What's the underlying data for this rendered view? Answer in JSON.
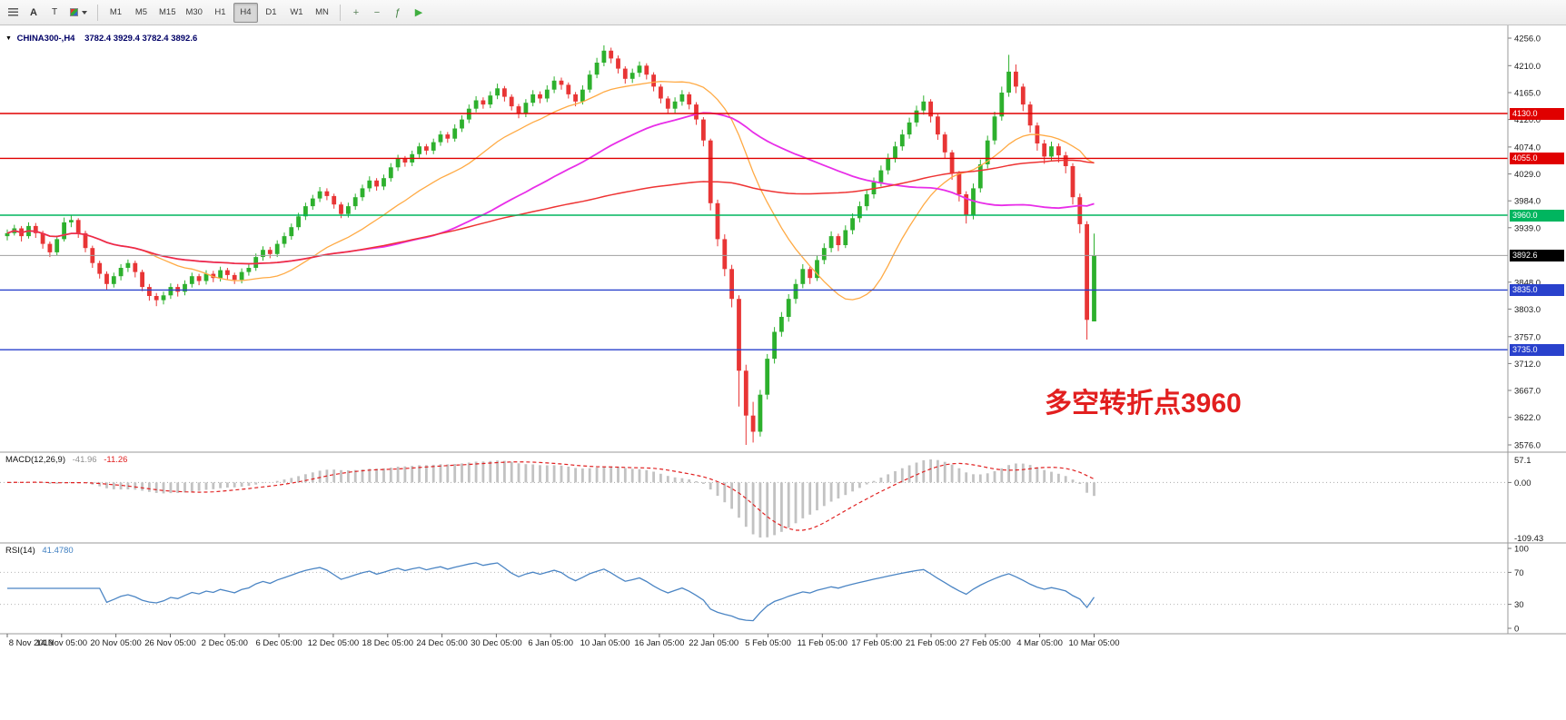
{
  "toolbar": {
    "text_tool_label": "A",
    "shapes_tool_label": "T",
    "timeframes": [
      "M1",
      "M5",
      "M15",
      "M30",
      "H1",
      "H4",
      "D1",
      "W1",
      "MN"
    ],
    "active_timeframe": "H4",
    "right_icons": [
      {
        "name": "zoom-in",
        "icon": "zoom-in-icon",
        "glyph": "+",
        "color": "#567f56"
      },
      {
        "name": "zoom-out",
        "icon": "zoom-out-icon",
        "glyph": "−",
        "color": "#567f56"
      },
      {
        "name": "indicators",
        "icon": "indicators-icon",
        "glyph": "ƒ",
        "color": "#3f7f3f"
      },
      {
        "name": "auto-trading",
        "icon": "autotrading-icon",
        "glyph": "▶",
        "color": "#3fae3f"
      }
    ]
  },
  "main_chart": {
    "title": "CHINA300-,H4",
    "ohlc_text": "3782.4 3929.4 3782.4 3892.6",
    "y_range": [
      3576.0,
      4256.0
    ],
    "y_ticks": [
      4256.0,
      4210.0,
      4165.0,
      4120.0,
      4074.0,
      4029.0,
      3984.0,
      3939.0,
      3848.0,
      3803.0,
      3757.0,
      3712.0,
      3667.0,
      3622.0,
      3576.0
    ],
    "hlines": [
      {
        "price": 4130.0,
        "label": "4130.0",
        "color": "#e00000"
      },
      {
        "price": 4055.0,
        "label": "4055.0",
        "color": "#e00000"
      },
      {
        "price": 3960.0,
        "label": "3960.0",
        "color": "#00b55f"
      },
      {
        "price": 3835.0,
        "label": "3835.0",
        "color": "#2941cc"
      },
      {
        "price": 3735.0,
        "label": "3735.0",
        "color": "#2941cc"
      }
    ],
    "current_price": {
      "value": 3892.6,
      "label": "3892.6",
      "line_color": "#a0a0a0",
      "label_bg": "#000000"
    },
    "annotation": {
      "text": "多空转折点3960",
      "color": "#e21f1f"
    }
  },
  "macd_panel": {
    "label": "MACD(12,26,9)",
    "value_main": "-41.96",
    "value_signal": "-11.26",
    "y_tick_labels": [
      "57.1",
      "0.00",
      "-109.43"
    ],
    "histogram_color": "#c2c2c2",
    "signal_color": "#e02020"
  },
  "rsi_panel": {
    "label": "RSI(14)",
    "value": "41.4780",
    "y_tick_labels": [
      "100",
      "70",
      "30",
      "0"
    ],
    "y_tick_values": [
      100,
      70,
      30,
      0
    ],
    "levels": [
      70,
      30
    ],
    "line_color": "#4b85c4"
  },
  "time_axis": {
    "labels": [
      "8 Nov 2019",
      "14 Nov 05:00",
      "20 Nov 05:00",
      "26 Nov 05:00",
      "2 Dec 05:00",
      "6 Dec 05:00",
      "12 Dec 05:00",
      "18 Dec 05:00",
      "24 Dec 05:00",
      "30 Dec 05:00",
      "6 Jan 05:00",
      "10 Jan 05:00",
      "16 Jan 05:00",
      "22 Jan 05:00",
      "5 Feb 05:00",
      "11 Feb 05:00",
      "17 Feb 05:00",
      "21 Feb 05:00",
      "27 Feb 05:00",
      "4 Mar 05:00",
      "10 Mar 05:00"
    ]
  },
  "chart_data": {
    "type": "candlestick",
    "symbol": "CHINA300-",
    "timeframe": "H4",
    "title": "CHINA300-,H4 with MACD(12,26,9) and RSI(14)",
    "ylim": [
      3576.0,
      4256.0
    ],
    "up_color": "#2db02d",
    "down_color": "#e83535",
    "moving_averages": [
      {
        "period": 20,
        "color": "#ffaa44",
        "width": 1.3
      },
      {
        "period": 50,
        "color": "#e82ee8",
        "width": 1.8
      },
      {
        "period": 100,
        "color": "#ee3333",
        "width": 1.5
      }
    ],
    "macd": {
      "fast": 12,
      "slow": 26,
      "signal": 9
    },
    "rsi": {
      "period": 14
    },
    "candles": [
      [
        3925,
        3936,
        3918,
        3930
      ],
      [
        3930,
        3944,
        3926,
        3938
      ],
      [
        3938,
        3942,
        3916,
        3925
      ],
      [
        3925,
        3948,
        3921,
        3942
      ],
      [
        3942,
        3947,
        3922,
        3930
      ],
      [
        3930,
        3934,
        3904,
        3912
      ],
      [
        3912,
        3916,
        3890,
        3898
      ],
      [
        3898,
        3926,
        3893,
        3920
      ],
      [
        3920,
        3956,
        3916,
        3948
      ],
      [
        3948,
        3960,
        3940,
        3952
      ],
      [
        3952,
        3955,
        3922,
        3930
      ],
      [
        3930,
        3934,
        3898,
        3905
      ],
      [
        3905,
        3909,
        3872,
        3880
      ],
      [
        3880,
        3884,
        3854,
        3862
      ],
      [
        3862,
        3866,
        3836,
        3845
      ],
      [
        3845,
        3864,
        3839,
        3858
      ],
      [
        3858,
        3878,
        3851,
        3872
      ],
      [
        3872,
        3886,
        3865,
        3880
      ],
      [
        3880,
        3884,
        3856,
        3865
      ],
      [
        3865,
        3869,
        3833,
        3840
      ],
      [
        3840,
        3845,
        3817,
        3825
      ],
      [
        3825,
        3830,
        3808,
        3818
      ],
      [
        3818,
        3832,
        3811,
        3826
      ],
      [
        3826,
        3846,
        3820,
        3840
      ],
      [
        3840,
        3845,
        3824,
        3832
      ],
      [
        3832,
        3851,
        3826,
        3845
      ],
      [
        3845,
        3864,
        3839,
        3858
      ],
      [
        3858,
        3862,
        3843,
        3850
      ],
      [
        3850,
        3868,
        3844,
        3862
      ],
      [
        3862,
        3867,
        3848,
        3855
      ],
      [
        3855,
        3874,
        3849,
        3868
      ],
      [
        3868,
        3872,
        3853,
        3860
      ],
      [
        3860,
        3864,
        3845,
        3852
      ],
      [
        3852,
        3871,
        3846,
        3865
      ],
      [
        3865,
        3878,
        3859,
        3872
      ],
      [
        3872,
        3896,
        3867,
        3890
      ],
      [
        3890,
        3908,
        3884,
        3902
      ],
      [
        3902,
        3907,
        3888,
        3895
      ],
      [
        3895,
        3918,
        3890,
        3912
      ],
      [
        3912,
        3931,
        3906,
        3925
      ],
      [
        3925,
        3946,
        3919,
        3940
      ],
      [
        3940,
        3964,
        3935,
        3958
      ],
      [
        3958,
        3981,
        3952,
        3975
      ],
      [
        3975,
        3994,
        3969,
        3988
      ],
      [
        3988,
        4007,
        3982,
        4000
      ],
      [
        4000,
        4005,
        3985,
        3992
      ],
      [
        3992,
        3996,
        3971,
        3978
      ],
      [
        3978,
        3982,
        3955,
        3962
      ],
      [
        3962,
        3981,
        3956,
        3975
      ],
      [
        3975,
        3996,
        3969,
        3990
      ],
      [
        3990,
        4011,
        3984,
        4005
      ],
      [
        4005,
        4025,
        3999,
        4018
      ],
      [
        4018,
        4022,
        4001,
        4008
      ],
      [
        4008,
        4028,
        4002,
        4022
      ],
      [
        4022,
        4047,
        4016,
        4040
      ],
      [
        4040,
        4061,
        4034,
        4055
      ],
      [
        4055,
        4059,
        4041,
        4048
      ],
      [
        4048,
        4068,
        4042,
        4062
      ],
      [
        4062,
        4081,
        4056,
        4075
      ],
      [
        4075,
        4079,
        4061,
        4068
      ],
      [
        4068,
        4088,
        4062,
        4082
      ],
      [
        4082,
        4101,
        4076,
        4095
      ],
      [
        4095,
        4099,
        4081,
        4088
      ],
      [
        4088,
        4112,
        4083,
        4105
      ],
      [
        4105,
        4127,
        4099,
        4120
      ],
      [
        4120,
        4145,
        4114,
        4138
      ],
      [
        4138,
        4159,
        4132,
        4152
      ],
      [
        4152,
        4157,
        4138,
        4145
      ],
      [
        4145,
        4167,
        4139,
        4160
      ],
      [
        4160,
        4180,
        4154,
        4172
      ],
      [
        4172,
        4176,
        4150,
        4158
      ],
      [
        4158,
        4162,
        4135,
        4142
      ],
      [
        4142,
        4146,
        4122,
        4130
      ],
      [
        4130,
        4154,
        4124,
        4148
      ],
      [
        4148,
        4169,
        4142,
        4162
      ],
      [
        4162,
        4167,
        4147,
        4155
      ],
      [
        4155,
        4177,
        4149,
        4170
      ],
      [
        4170,
        4192,
        4164,
        4185
      ],
      [
        4185,
        4190,
        4170,
        4178
      ],
      [
        4178,
        4182,
        4155,
        4162
      ],
      [
        4162,
        4166,
        4142,
        4150
      ],
      [
        4150,
        4177,
        4145,
        4170
      ],
      [
        4170,
        4202,
        4165,
        4195
      ],
      [
        4195,
        4223,
        4189,
        4215
      ],
      [
        4215,
        4244,
        4209,
        4235
      ],
      [
        4235,
        4240,
        4214,
        4222
      ],
      [
        4222,
        4227,
        4197,
        4205
      ],
      [
        4205,
        4209,
        4180,
        4188
      ],
      [
        4188,
        4205,
        4181,
        4198
      ],
      [
        4198,
        4217,
        4191,
        4210
      ],
      [
        4210,
        4214,
        4187,
        4195
      ],
      [
        4195,
        4199,
        4167,
        4175
      ],
      [
        4175,
        4179,
        4147,
        4155
      ],
      [
        4155,
        4159,
        4130,
        4138
      ],
      [
        4138,
        4157,
        4131,
        4150
      ],
      [
        4150,
        4169,
        4143,
        4162
      ],
      [
        4162,
        4166,
        4137,
        4145
      ],
      [
        4145,
        4149,
        4111,
        4120
      ],
      [
        4120,
        4124,
        4075,
        4085
      ],
      [
        4085,
        4088,
        3968,
        3980
      ],
      [
        3980,
        3986,
        3908,
        3920
      ],
      [
        3920,
        3928,
        3858,
        3870
      ],
      [
        3870,
        3877,
        3806,
        3820
      ],
      [
        3820,
        3826,
        3640,
        3700
      ],
      [
        3700,
        3710,
        3576,
        3625
      ],
      [
        3625,
        3648,
        3580,
        3598
      ],
      [
        3598,
        3668,
        3590,
        3660
      ],
      [
        3660,
        3728,
        3652,
        3720
      ],
      [
        3720,
        3773,
        3712,
        3765
      ],
      [
        3765,
        3798,
        3757,
        3790
      ],
      [
        3790,
        3828,
        3782,
        3820
      ],
      [
        3820,
        3853,
        3812,
        3845
      ],
      [
        3845,
        3878,
        3838,
        3870
      ],
      [
        3870,
        3874,
        3845,
        3855
      ],
      [
        3855,
        3893,
        3850,
        3885
      ],
      [
        3885,
        3913,
        3878,
        3905
      ],
      [
        3905,
        3933,
        3898,
        3925
      ],
      [
        3925,
        3929,
        3900,
        3910
      ],
      [
        3910,
        3943,
        3905,
        3935
      ],
      [
        3935,
        3963,
        3928,
        3955
      ],
      [
        3955,
        3983,
        3948,
        3975
      ],
      [
        3975,
        4003,
        3968,
        3995
      ],
      [
        3995,
        4023,
        3988,
        4015
      ],
      [
        4015,
        4043,
        4008,
        4035
      ],
      [
        4035,
        4063,
        4028,
        4055
      ],
      [
        4055,
        4083,
        4048,
        4075
      ],
      [
        4075,
        4103,
        4068,
        4095
      ],
      [
        4095,
        4123,
        4088,
        4115
      ],
      [
        4115,
        4143,
        4108,
        4135
      ],
      [
        4135,
        4160,
        4128,
        4150
      ],
      [
        4150,
        4154,
        4115,
        4125
      ],
      [
        4125,
        4129,
        4086,
        4095
      ],
      [
        4095,
        4099,
        4055,
        4065
      ],
      [
        4065,
        4069,
        4019,
        4030
      ],
      [
        4030,
        4034,
        3983,
        3995
      ],
      [
        3995,
        4000,
        3946,
        3960
      ],
      [
        3960,
        4013,
        3953,
        4005
      ],
      [
        4005,
        4053,
        3998,
        4045
      ],
      [
        4045,
        4093,
        4038,
        4085
      ],
      [
        4085,
        4133,
        4078,
        4125
      ],
      [
        4125,
        4175,
        4118,
        4165
      ],
      [
        4165,
        4228,
        4158,
        4200
      ],
      [
        4200,
        4212,
        4164,
        4175
      ],
      [
        4175,
        4180,
        4134,
        4145
      ],
      [
        4145,
        4150,
        4098,
        4110
      ],
      [
        4110,
        4115,
        4068,
        4080
      ],
      [
        4080,
        4086,
        4046,
        4058
      ],
      [
        4058,
        4083,
        4050,
        4075
      ],
      [
        4075,
        4080,
        4048,
        4060
      ],
      [
        4060,
        4066,
        4030,
        4042
      ],
      [
        4042,
        4047,
        3978,
        3990
      ],
      [
        3990,
        3996,
        3930,
        3945
      ],
      [
        3945,
        3950,
        3752,
        3785
      ],
      [
        3782.4,
        3929.4,
        3782.4,
        3892.6
      ]
    ]
  }
}
